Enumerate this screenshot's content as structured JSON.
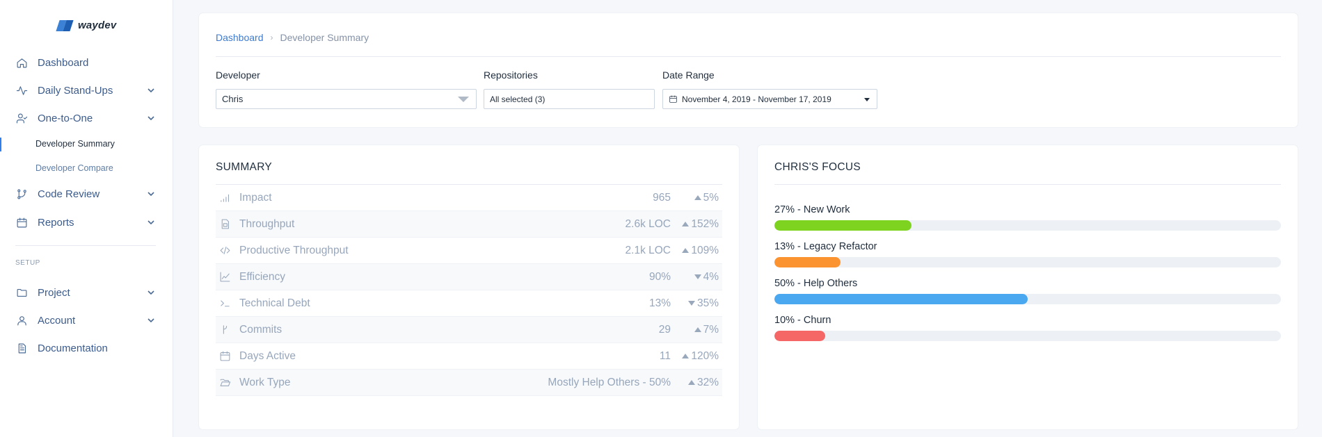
{
  "brand": {
    "name": "waydev"
  },
  "sidebar": {
    "items": [
      {
        "label": "Dashboard"
      },
      {
        "label": "Daily Stand-Ups"
      },
      {
        "label": "One-to-One"
      },
      {
        "label": "Developer Summary"
      },
      {
        "label": "Developer Compare"
      },
      {
        "label": "Code Review"
      },
      {
        "label": "Reports"
      }
    ],
    "setup_label": "SETUP",
    "setup_items": [
      {
        "label": "Project"
      },
      {
        "label": "Account"
      },
      {
        "label": "Documentation"
      }
    ]
  },
  "breadcrumb": {
    "root": "Dashboard",
    "current": "Developer Summary"
  },
  "filters": {
    "developer": {
      "label": "Developer",
      "value": "Chris"
    },
    "repositories": {
      "label": "Repositories",
      "value": "All selected (3)"
    },
    "date_range": {
      "label": "Date Range",
      "value": "November 4, 2019 - November 17, 2019"
    }
  },
  "summary": {
    "title": "SUMMARY",
    "rows": [
      {
        "label": "Impact",
        "value": "965",
        "change": "5%",
        "direction": "up"
      },
      {
        "label": "Throughput",
        "value": "2.6k LOC",
        "change": "152%",
        "direction": "up"
      },
      {
        "label": "Productive Throughput",
        "value": "2.1k LOC",
        "change": "109%",
        "direction": "up"
      },
      {
        "label": "Efficiency",
        "value": "90%",
        "change": "4%",
        "direction": "down"
      },
      {
        "label": "Technical Debt",
        "value": "13%",
        "change": "35%",
        "direction": "down"
      },
      {
        "label": "Commits",
        "value": "29",
        "change": "7%",
        "direction": "up"
      },
      {
        "label": "Days Active",
        "value": "11",
        "change": "120%",
        "direction": "up"
      },
      {
        "label": "Work Type",
        "value": "Mostly Help Others - 50%",
        "change": "32%",
        "direction": "up"
      }
    ]
  },
  "focus": {
    "title": "CHRIS'S FOCUS",
    "items": [
      {
        "label": "27% - New Work",
        "percent": 27,
        "color": "#7ed321"
      },
      {
        "label": "13% - Legacy Refactor",
        "percent": 13,
        "color": "#fb9330"
      },
      {
        "label": "50% - Help Others",
        "percent": 50,
        "color": "#4aa8f0"
      },
      {
        "label": "10% - Churn",
        "percent": 10,
        "color": "#f56767"
      }
    ]
  }
}
